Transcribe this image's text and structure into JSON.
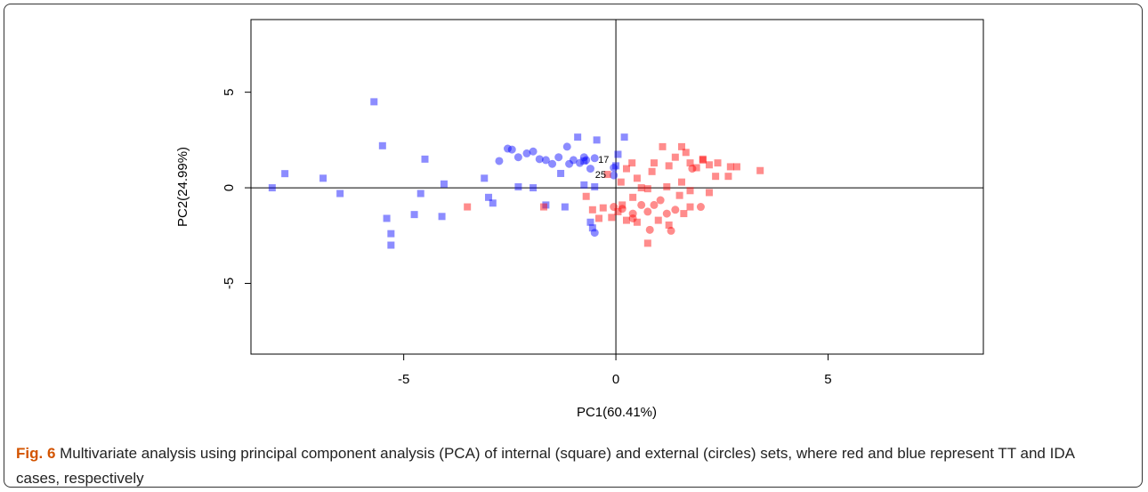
{
  "chart_data": {
    "type": "scatter",
    "xlabel": "PC1(60.41%)",
    "ylabel": "PC2(24.99%)",
    "xlim": [
      -8.6,
      8.66
    ],
    "ylim": [
      -8.7,
      8.8
    ],
    "xticks": [
      -5,
      0,
      5
    ],
    "yticks": [
      -5,
      0,
      5
    ],
    "reference_lines": {
      "x": 0,
      "y": 0
    },
    "series": [
      {
        "color": "#0000ff",
        "opacity": 0.45,
        "marker": "square",
        "x": [
          -8.1,
          -7.8,
          -6.9,
          -6.5,
          -5.7,
          -5.5,
          -5.4,
          -5.3,
          -5.3,
          -4.75,
          -4.6,
          -4.5,
          -4.1,
          -4.05,
          -3.0,
          -3.1,
          -2.9,
          -2.3,
          -1.95,
          -1.65,
          -1.2,
          -1.3,
          -0.9,
          -0.75,
          -0.45,
          -0.75,
          -0.5,
          0.2,
          0.05,
          0,
          -0.55,
          -0.6
        ],
        "values": [
          0.0,
          0.74,
          0.5,
          -0.3,
          4.5,
          2.2,
          -1.6,
          -2.4,
          -3.0,
          -1.4,
          -0.3,
          1.5,
          -1.5,
          0.2,
          -0.5,
          0.5,
          -0.8,
          0.05,
          0,
          -0.9,
          -1.0,
          0.75,
          2.65,
          1.4,
          2.5,
          0.15,
          0.05,
          2.65,
          1.75,
          1.15,
          -2.1,
          -1.8
        ]
      },
      {
        "color": "#0000ff",
        "opacity": 0.45,
        "marker": "circle",
        "x": [
          -2.55,
          -2.45,
          -2.3,
          -2.1,
          -1.95,
          -1.8,
          -1.65,
          -1.5,
          -1.35,
          -1.15,
          -1.0,
          -0.85,
          -0.7,
          -0.6,
          -0.75,
          -1.1,
          -0.5,
          -0.05,
          -0.05,
          -0.5,
          -2.75
        ],
        "values": [
          2.05,
          2.0,
          1.6,
          1.8,
          1.9,
          1.5,
          1.45,
          1.25,
          1.6,
          2.15,
          1.45,
          1.3,
          1.45,
          1.0,
          1.6,
          1.25,
          1.55,
          0.65,
          1.05,
          -2.35,
          1.4
        ]
      },
      {
        "color": "#ff0000",
        "opacity": 0.45,
        "marker": "square",
        "x": [
          -3.5,
          -1.7,
          -0.7,
          -0.55,
          -0.4,
          -0.3,
          0.12,
          0.25,
          0.38,
          0.5,
          0.6,
          0.75,
          0.85,
          1.1,
          0.9,
          1.25,
          1.4,
          1.55,
          1.65,
          1.75,
          1.9,
          2.05,
          2.2,
          2.4,
          2.7,
          2.85,
          3.4,
          2.65,
          2.35,
          2.2,
          1.75,
          1.55,
          1.2,
          0.4,
          0.15,
          0.25,
          0.5,
          0.75,
          1.0,
          1.25,
          1.6,
          1.75,
          -0.1,
          0.05,
          -0.2,
          1.5,
          2.05
        ],
        "values": [
          -1.0,
          -1.0,
          -0.45,
          -1.15,
          -1.6,
          -1.05,
          0.3,
          1.0,
          1.3,
          0.5,
          0,
          -0.05,
          0.85,
          2.15,
          1.3,
          1.15,
          1.6,
          2.15,
          1.85,
          1.3,
          1.05,
          1.5,
          1.2,
          1.3,
          1.1,
          1.1,
          0.9,
          0.6,
          0.6,
          -0.25,
          -0.15,
          0.3,
          0.05,
          -0.5,
          -0.9,
          -1.7,
          -1.8,
          -2.9,
          -1.7,
          -1.95,
          -1.35,
          -1.0,
          -1.55,
          -1.25,
          0.7,
          -0.4,
          1.45
        ]
      },
      {
        "color": "#ff0000",
        "opacity": 0.45,
        "marker": "circle",
        "x": [
          0.15,
          0.4,
          0.6,
          0.75,
          0.9,
          1.05,
          1.2,
          1.3,
          0.8,
          2.0,
          1.4,
          1.8,
          -0.05,
          0.4
        ],
        "values": [
          -1.1,
          -1.35,
          -0.9,
          -1.25,
          -0.9,
          -0.65,
          -1.35,
          -2.25,
          -2.2,
          -1.0,
          -1.15,
          1.0,
          -1.0,
          -1.6
        ]
      }
    ],
    "annotations": [
      {
        "text": "17",
        "x": -0.29,
        "y": 1.5
      },
      {
        "text": "25",
        "x": -0.36,
        "y": 0.7
      }
    ],
    "caption_label": "Fig. 6",
    "caption_text": "Multivariate analysis using principal component analysis (PCA) of internal (square) and external (circles) sets, where red and blue represent TT and IDA cases, respectively"
  }
}
